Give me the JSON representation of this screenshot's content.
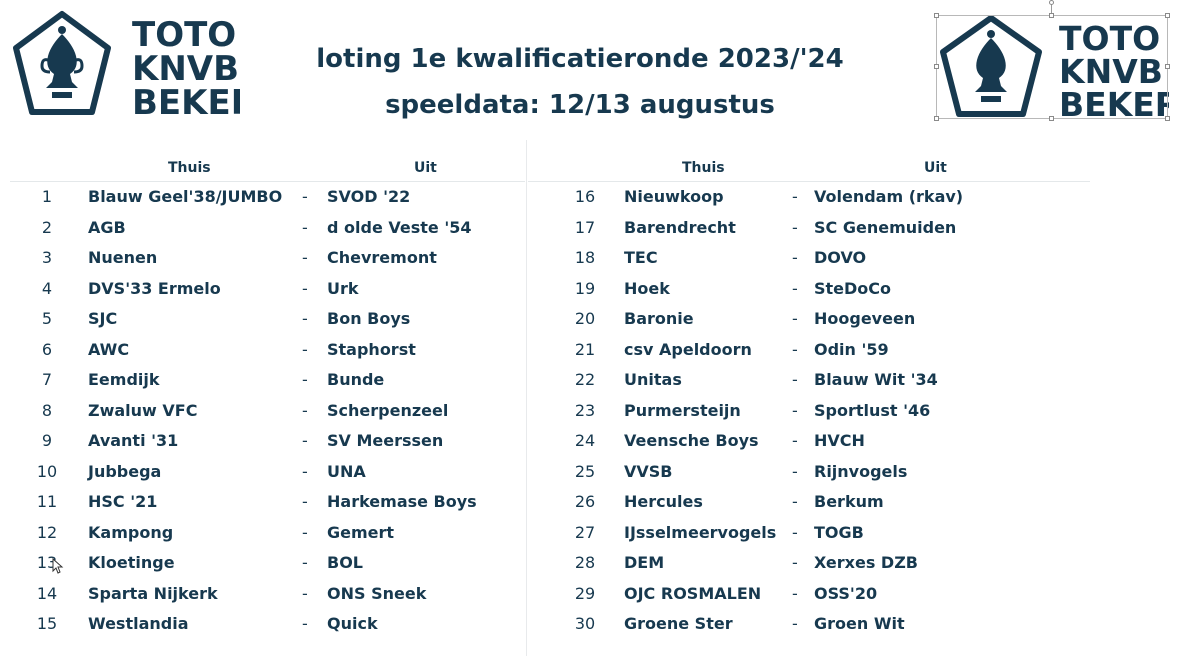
{
  "title_line1": "loting 1e kwalificatieronde 2023/'24",
  "title_line2": "speeldata: 12/13 augustus",
  "logo": {
    "line1": "TOTO",
    "line2": "KNVB",
    "line3": "BEKER",
    "emblem": "trophy-pentagon-icon"
  },
  "headers": {
    "home": "Thuis",
    "away": "Uit"
  },
  "separator": "-",
  "colors": {
    "text": "#17394f",
    "divider": "#e4e8ea"
  },
  "left_matches": [
    {
      "no": "1",
      "home": "Blauw Geel'38/JUMBO",
      "away": "SVOD '22"
    },
    {
      "no": "2",
      "home": "AGB",
      "away": "d olde Veste '54"
    },
    {
      "no": "3",
      "home": "Nuenen",
      "away": "Chevremont"
    },
    {
      "no": "4",
      "home": "DVS'33 Ermelo",
      "away": "Urk"
    },
    {
      "no": "5",
      "home": "SJC",
      "away": "Bon Boys"
    },
    {
      "no": "6",
      "home": "AWC",
      "away": "Staphorst"
    },
    {
      "no": "7",
      "home": "Eemdijk",
      "away": "Bunde"
    },
    {
      "no": "8",
      "home": "Zwaluw VFC",
      "away": "Scherpenzeel"
    },
    {
      "no": "9",
      "home": "Avanti '31",
      "away": "SV Meerssen"
    },
    {
      "no": "10",
      "home": "Jubbega",
      "away": "UNA"
    },
    {
      "no": "11",
      "home": "HSC '21",
      "away": "Harkemase Boys"
    },
    {
      "no": "12",
      "home": "Kampong",
      "away": "Gemert"
    },
    {
      "no": "13",
      "home": "Kloetinge",
      "away": "BOL"
    },
    {
      "no": "14",
      "home": "Sparta Nijkerk",
      "away": "ONS Sneek"
    },
    {
      "no": "15",
      "home": "Westlandia",
      "away": "Quick"
    }
  ],
  "right_matches": [
    {
      "no": "16",
      "home": "Nieuwkoop",
      "away": "Volendam (rkav)"
    },
    {
      "no": "17",
      "home": "Barendrecht",
      "away": "SC Genemuiden"
    },
    {
      "no": "18",
      "home": "TEC",
      "away": "DOVO"
    },
    {
      "no": "19",
      "home": "Hoek",
      "away": "SteDoCo"
    },
    {
      "no": "20",
      "home": "Baronie",
      "away": "Hoogeveen"
    },
    {
      "no": "21",
      "home": "csv Apeldoorn",
      "away": "Odin '59"
    },
    {
      "no": "22",
      "home": "Unitas",
      "away": "Blauw Wit '34"
    },
    {
      "no": "23",
      "home": "Purmersteijn",
      "away": "Sportlust '46"
    },
    {
      "no": "24",
      "home": "Veensche Boys",
      "away": "HVCH"
    },
    {
      "no": "25",
      "home": "VVSB",
      "away": "Rijnvogels"
    },
    {
      "no": "26",
      "home": "Hercules",
      "away": "Berkum"
    },
    {
      "no": "27",
      "home": "IJsselmeervogels",
      "away": "TOGB"
    },
    {
      "no": "28",
      "home": "DEM",
      "away": "Xerxes DZB"
    },
    {
      "no": "29",
      "home": "OJC ROSMALEN",
      "away": "OSS'20"
    },
    {
      "no": "30",
      "home": "Groene Ster",
      "away": "Groen Wit"
    }
  ]
}
